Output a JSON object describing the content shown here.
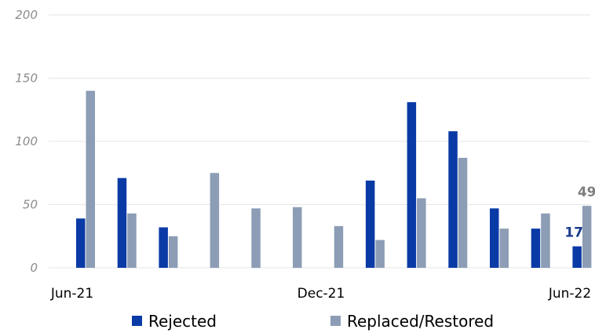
{
  "chart_data": {
    "type": "bar",
    "x": [
      "Jun-21",
      "Jul-21",
      "Aug-21",
      "Sep-21",
      "Oct-21",
      "Nov-21",
      "Dec-21",
      "Jan-22",
      "Feb-22",
      "Mar-22",
      "Apr-22",
      "May-22",
      "Jun-22"
    ],
    "x_tick_labels": [
      "Jun-21",
      "Dec-21",
      "Jun-22"
    ],
    "series": [
      {
        "name": "Rejected",
        "color": "#0a3aa6",
        "values": [
          39,
          71,
          32,
          0,
          0,
          0,
          0,
          69,
          131,
          108,
          47,
          31,
          17
        ]
      },
      {
        "name": "Replaced/Restored",
        "color": "#8c9db5",
        "values": [
          140,
          43,
          25,
          75,
          47,
          48,
          33,
          22,
          55,
          87,
          31,
          43,
          49
        ]
      }
    ],
    "data_labels": [
      {
        "series": "Rejected",
        "x": "Jun-22",
        "value": "17"
      },
      {
        "series": "Replaced/Restored",
        "x": "Jun-22",
        "value": "49"
      }
    ],
    "yticks": [
      "0",
      "50",
      "100",
      "150",
      "200"
    ],
    "ylim": [
      0,
      200
    ],
    "grid": true,
    "legend": "bottom",
    "title": "",
    "xlabel": "",
    "ylabel": ""
  }
}
